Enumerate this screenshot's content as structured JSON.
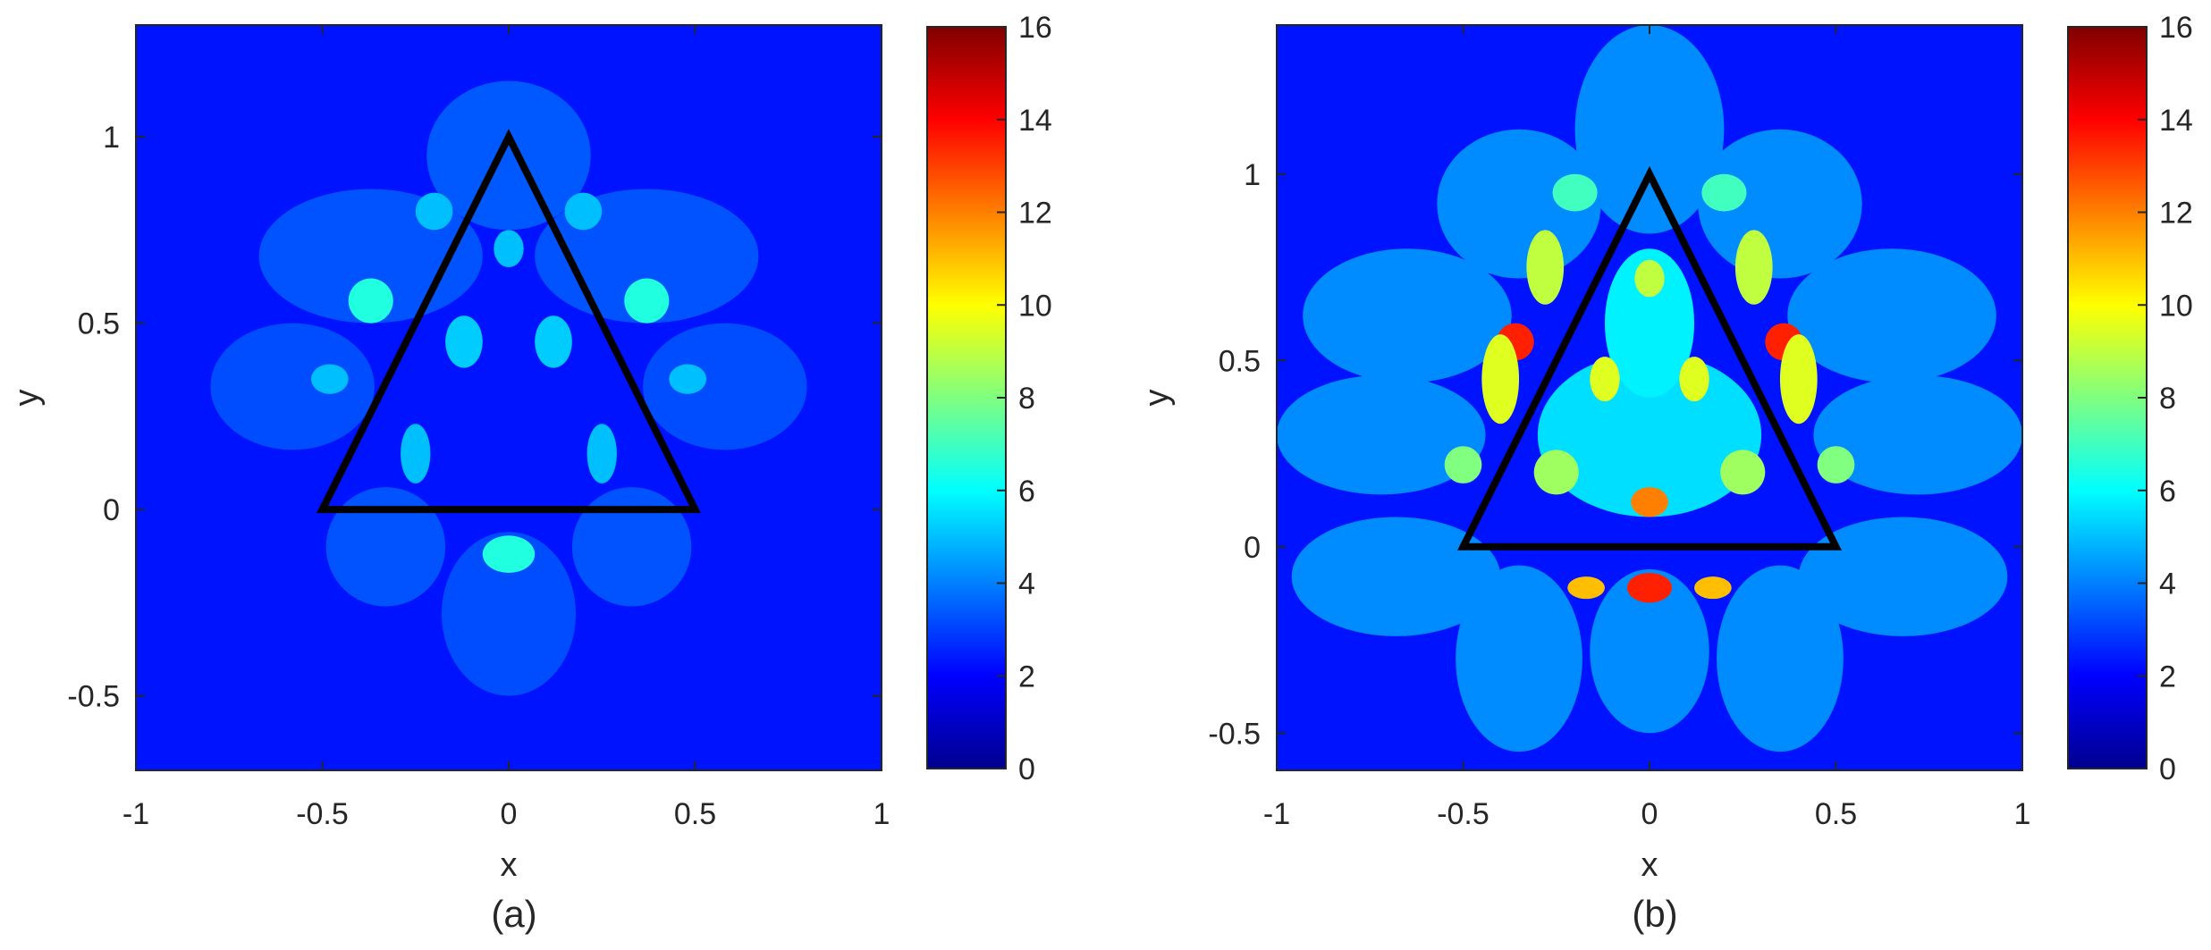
{
  "chart_data": [
    {
      "type": "heatmap",
      "panel_label": "(a)",
      "xlabel": "x",
      "ylabel": "y",
      "xlim": [
        -1,
        1
      ],
      "ylim": [
        -0.7,
        1.3
      ],
      "xticks": [
        "-1",
        "-0.5",
        "0",
        "0.5",
        "1"
      ],
      "xtick_values": [
        -1,
        -0.5,
        0,
        0.5,
        1
      ],
      "yticks": [
        "-0.5",
        "0",
        "0.5",
        "1"
      ],
      "ytick_values": [
        -0.5,
        0,
        0.5,
        1
      ],
      "colorbar": {
        "min": 0,
        "max": 16,
        "ticks": [
          "0",
          "2",
          "4",
          "6",
          "8",
          "10",
          "12",
          "14",
          "16"
        ],
        "tick_values": [
          0,
          2,
          4,
          6,
          8,
          10,
          12,
          14,
          16
        ],
        "colormap": "jet"
      },
      "background_value": 2.3,
      "triangle": [
        [
          -0.5,
          0
        ],
        [
          0,
          1
        ],
        [
          0.5,
          0
        ]
      ],
      "regions": [
        {
          "cx": 0,
          "cy": 0.95,
          "rx": 0.22,
          "ry": 0.2,
          "v": 3.4
        },
        {
          "cx": -0.37,
          "cy": 0.68,
          "rx": 0.3,
          "ry": 0.18,
          "v": 3.3
        },
        {
          "cx": 0.37,
          "cy": 0.68,
          "rx": 0.3,
          "ry": 0.18,
          "v": 3.3
        },
        {
          "cx": -0.58,
          "cy": 0.33,
          "rx": 0.22,
          "ry": 0.17,
          "v": 3.2
        },
        {
          "cx": 0.58,
          "cy": 0.33,
          "rx": 0.22,
          "ry": 0.17,
          "v": 3.2
        },
        {
          "cx": -0.33,
          "cy": -0.1,
          "rx": 0.16,
          "ry": 0.16,
          "v": 3.3
        },
        {
          "cx": 0.33,
          "cy": -0.1,
          "rx": 0.16,
          "ry": 0.16,
          "v": 3.3
        },
        {
          "cx": 0,
          "cy": -0.28,
          "rx": 0.18,
          "ry": 0.22,
          "v": 3.2
        },
        {
          "cx": -0.37,
          "cy": 0.56,
          "rx": 0.06,
          "ry": 0.06,
          "v": 6.5
        },
        {
          "cx": 0.37,
          "cy": 0.56,
          "rx": 0.06,
          "ry": 0.06,
          "v": 6.5
        },
        {
          "cx": -0.12,
          "cy": 0.45,
          "rx": 0.05,
          "ry": 0.07,
          "v": 5.2
        },
        {
          "cx": 0.12,
          "cy": 0.45,
          "rx": 0.05,
          "ry": 0.07,
          "v": 5.2
        },
        {
          "cx": 0,
          "cy": 0.7,
          "rx": 0.04,
          "ry": 0.05,
          "v": 5.0
        },
        {
          "cx": -0.25,
          "cy": 0.15,
          "rx": 0.04,
          "ry": 0.08,
          "v": 5.0
        },
        {
          "cx": 0.25,
          "cy": 0.15,
          "rx": 0.04,
          "ry": 0.08,
          "v": 5.0
        },
        {
          "cx": 0,
          "cy": -0.12,
          "rx": 0.07,
          "ry": 0.05,
          "v": 6.5
        },
        {
          "cx": -0.2,
          "cy": 0.8,
          "rx": 0.05,
          "ry": 0.05,
          "v": 5.0
        },
        {
          "cx": 0.2,
          "cy": 0.8,
          "rx": 0.05,
          "ry": 0.05,
          "v": 5.0
        },
        {
          "cx": -0.48,
          "cy": 0.35,
          "rx": 0.05,
          "ry": 0.04,
          "v": 5.0
        },
        {
          "cx": 0.48,
          "cy": 0.35,
          "rx": 0.05,
          "ry": 0.04,
          "v": 5.0
        }
      ]
    },
    {
      "type": "heatmap",
      "panel_label": "(b)",
      "xlabel": "x",
      "ylabel": "y",
      "xlim": [
        -1,
        1
      ],
      "ylim": [
        -0.6,
        1.4
      ],
      "xticks": [
        "-1",
        "-0.5",
        "0",
        "0.5",
        "1"
      ],
      "xtick_values": [
        -1,
        -0.5,
        0,
        0.5,
        1
      ],
      "yticks": [
        "-0.5",
        "0",
        "0.5",
        "1"
      ],
      "ytick_values": [
        -0.5,
        0,
        0.5,
        1
      ],
      "colorbar": {
        "min": 0,
        "max": 16,
        "ticks": [
          "0",
          "2",
          "4",
          "6",
          "8",
          "10",
          "12",
          "14",
          "16"
        ],
        "tick_values": [
          0,
          2,
          4,
          6,
          8,
          10,
          12,
          14,
          16
        ],
        "colormap": "jet"
      },
      "background_value": 2.3,
      "triangle": [
        [
          -0.5,
          0
        ],
        [
          0,
          1
        ],
        [
          0.5,
          0
        ]
      ],
      "regions": [
        {
          "cx": 0,
          "cy": 1.12,
          "rx": 0.2,
          "ry": 0.28,
          "v": 4.2
        },
        {
          "cx": -0.35,
          "cy": 0.92,
          "rx": 0.22,
          "ry": 0.2,
          "v": 4.2
        },
        {
          "cx": 0.35,
          "cy": 0.92,
          "rx": 0.22,
          "ry": 0.2,
          "v": 4.2
        },
        {
          "cx": -0.65,
          "cy": 0.62,
          "rx": 0.28,
          "ry": 0.18,
          "v": 4.2
        },
        {
          "cx": 0.65,
          "cy": 0.62,
          "rx": 0.28,
          "ry": 0.18,
          "v": 4.2
        },
        {
          "cx": -0.72,
          "cy": 0.3,
          "rx": 0.28,
          "ry": 0.16,
          "v": 4.2
        },
        {
          "cx": 0.72,
          "cy": 0.3,
          "rx": 0.28,
          "ry": 0.16,
          "v": 4.2
        },
        {
          "cx": -0.68,
          "cy": -0.08,
          "rx": 0.28,
          "ry": 0.16,
          "v": 4.2
        },
        {
          "cx": 0.68,
          "cy": -0.08,
          "rx": 0.28,
          "ry": 0.16,
          "v": 4.2
        },
        {
          "cx": -0.35,
          "cy": -0.3,
          "rx": 0.17,
          "ry": 0.25,
          "v": 4.2
        },
        {
          "cx": 0.35,
          "cy": -0.3,
          "rx": 0.17,
          "ry": 0.25,
          "v": 4.2
        },
        {
          "cx": 0,
          "cy": -0.28,
          "rx": 0.16,
          "ry": 0.22,
          "v": 4.2
        },
        {
          "cx": 0,
          "cy": 0.3,
          "rx": 0.3,
          "ry": 0.22,
          "v": 5.5
        },
        {
          "cx": 0,
          "cy": 0.6,
          "rx": 0.12,
          "ry": 0.2,
          "v": 5.8
        },
        {
          "cx": -0.36,
          "cy": 0.55,
          "rx": 0.05,
          "ry": 0.05,
          "v": 13.5
        },
        {
          "cx": 0.36,
          "cy": 0.55,
          "rx": 0.05,
          "ry": 0.05,
          "v": 13.5
        },
        {
          "cx": -0.4,
          "cy": 0.45,
          "rx": 0.05,
          "ry": 0.12,
          "v": 9.5
        },
        {
          "cx": 0.4,
          "cy": 0.45,
          "rx": 0.05,
          "ry": 0.12,
          "v": 9.5
        },
        {
          "cx": -0.28,
          "cy": 0.75,
          "rx": 0.05,
          "ry": 0.1,
          "v": 9.0
        },
        {
          "cx": 0.28,
          "cy": 0.75,
          "rx": 0.05,
          "ry": 0.1,
          "v": 9.0
        },
        {
          "cx": 0,
          "cy": 0.12,
          "rx": 0.05,
          "ry": 0.04,
          "v": 12.0
        },
        {
          "cx": 0,
          "cy": -0.11,
          "rx": 0.06,
          "ry": 0.04,
          "v": 13.5
        },
        {
          "cx": -0.17,
          "cy": -0.11,
          "rx": 0.05,
          "ry": 0.03,
          "v": 11.0
        },
        {
          "cx": 0.17,
          "cy": -0.11,
          "rx": 0.05,
          "ry": 0.03,
          "v": 11.0
        },
        {
          "cx": -0.12,
          "cy": 0.45,
          "rx": 0.04,
          "ry": 0.06,
          "v": 9.5
        },
        {
          "cx": 0.12,
          "cy": 0.45,
          "rx": 0.04,
          "ry": 0.06,
          "v": 9.5
        },
        {
          "cx": 0,
          "cy": 0.72,
          "rx": 0.04,
          "ry": 0.05,
          "v": 9.0
        },
        {
          "cx": -0.25,
          "cy": 0.2,
          "rx": 0.06,
          "ry": 0.06,
          "v": 8.5
        },
        {
          "cx": 0.25,
          "cy": 0.2,
          "rx": 0.06,
          "ry": 0.06,
          "v": 8.5
        },
        {
          "cx": -0.5,
          "cy": 0.22,
          "rx": 0.05,
          "ry": 0.05,
          "v": 8.0
        },
        {
          "cx": 0.5,
          "cy": 0.22,
          "rx": 0.05,
          "ry": 0.05,
          "v": 8.0
        },
        {
          "cx": -0.2,
          "cy": 0.95,
          "rx": 0.06,
          "ry": 0.05,
          "v": 7.0
        },
        {
          "cx": 0.2,
          "cy": 0.95,
          "rx": 0.06,
          "ry": 0.05,
          "v": 7.0
        }
      ]
    }
  ]
}
